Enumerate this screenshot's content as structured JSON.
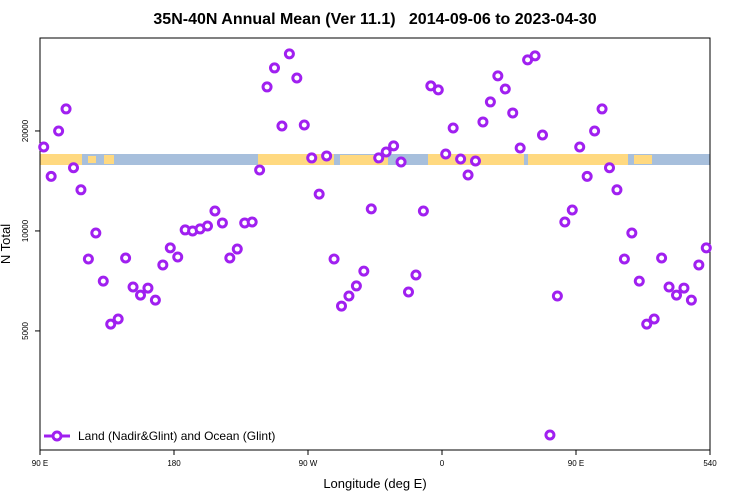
{
  "chart_data": {
    "type": "scatter",
    "title": "35N-40N Annual Mean (Ver 11.1)   2014-09-06 to 2023-04-30",
    "x_label": "Longitude (deg E)",
    "y_label": "N Total",
    "xlim": [
      90,
      540
    ],
    "ylim": [
      2190,
      38100
    ],
    "log_y": true,
    "legend": "bottom-left",
    "xticks": [
      {
        "value": 90,
        "label": "90 E"
      },
      180,
      {
        "value": 270,
        "label": "90 W"
      },
      {
        "value": 360,
        "label": "0"
      },
      {
        "value": 450,
        "label": "90 E"
      },
      540
    ],
    "yticks": [
      5000,
      10000,
      20000
    ],
    "series": [
      {
        "name": "Land (Nadir&Glint) and Ocean (Glint)",
        "color": "#a020f0",
        "x": [
          92.5,
          97.5,
          102.5,
          107.5,
          112.5,
          117.5,
          122.5,
          127.5,
          132.5,
          137.5,
          142.5,
          147.5,
          152.5,
          157.5,
          162.5,
          167.5,
          172.5,
          177.5,
          182.5,
          187.5,
          192.5,
          197.5,
          202.5,
          207.5,
          212.5,
          217.5,
          222.5,
          227.5,
          232.5,
          237.5,
          242.5,
          247.5,
          252.5,
          257.5,
          262.5,
          267.5,
          272.5,
          277.5,
          282.5,
          287.5,
          292.5,
          297.5,
          302.5,
          307.5,
          312.5,
          317.5,
          322.5,
          327.5,
          332.5,
          337.5,
          342.5,
          347.5,
          352.5,
          357.5,
          362.5,
          367.5,
          372.5,
          377.5,
          382.5,
          387.5,
          392.5,
          397.5,
          402.5,
          407.5,
          412.5,
          417.5,
          422.5,
          427.5,
          432.5,
          437.5,
          442.5,
          447.5,
          452.5,
          457.5,
          462.5,
          467.5,
          472.5,
          477.5,
          482.5,
          487.5,
          492.5,
          497.5,
          502.5,
          507.5,
          512.5,
          517.5,
          522.5,
          527.5,
          532.5,
          537.5
        ],
        "values": [
          17900,
          14600,
          20000,
          23300,
          15500,
          13300,
          8230,
          9860,
          7060,
          5240,
          5430,
          8290,
          6780,
          6410,
          6730,
          6190,
          7900,
          8890,
          8350,
          10070,
          10000,
          10140,
          10350,
          11480,
          10570,
          8290,
          8820,
          10570,
          10640,
          15260,
          27140,
          30960,
          20700,
          34120,
          28870,
          20850,
          16590,
          12910,
          16820,
          8230,
          5940,
          6370,
          6830,
          7570,
          11650,
          16590,
          17290,
          18030,
          16130,
          6550,
          7370,
          11480,
          27330,
          26590,
          17050,
          20420,
          16470,
          14740,
          16240,
          21290,
          24460,
          29300,
          26760,
          22660,
          17770,
          32730,
          33650,
          19450,
          2430,
          6370,
          10640,
          11560,
          17900,
          14600,
          20000,
          23300,
          15500,
          13300,
          8230,
          9860,
          7060,
          5240,
          5430,
          8290,
          6780,
          6410,
          6730,
          6190,
          7900,
          8890
        ]
      }
    ]
  }
}
